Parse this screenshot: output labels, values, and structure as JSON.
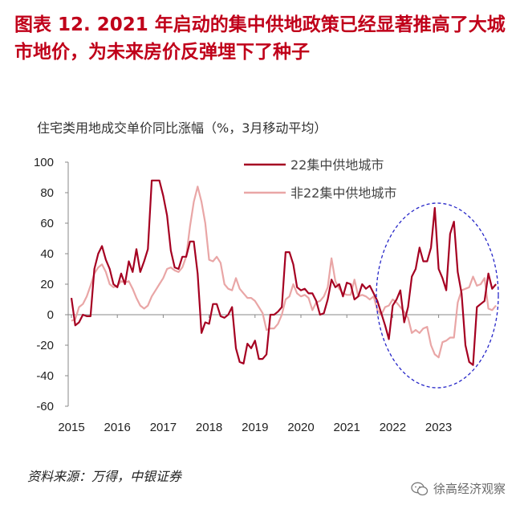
{
  "header": {
    "title": "图表 12.   2021 年启动的集中供地政策已经显著推高了大城市地价，为未来房价反弹埋下了种子"
  },
  "chart_data": {
    "type": "line",
    "subtitle": "住宅类用地成交单价同比涨幅（%，3月移动平均）",
    "xlabel": "",
    "ylabel": "",
    "ylim": [
      -60,
      100
    ],
    "yticks": [
      100,
      80,
      60,
      40,
      20,
      0,
      -20,
      -40,
      -60
    ],
    "xtick_labels": [
      "2015",
      "2016",
      "2017",
      "2018",
      "2019",
      "2020",
      "2021",
      "2022",
      "2023"
    ],
    "x_start": "2015-01",
    "x_end": "2023-08",
    "x_unit": "month",
    "grid": false,
    "legend_position": "top-right",
    "annotation": "dashed blue ellipse highlighting 2021H2–2023",
    "series": [
      {
        "name": "22集中供地城市",
        "color": "#a50021",
        "values": [
          11,
          -7,
          -5,
          0,
          -1,
          -1,
          30,
          40,
          45,
          36,
          30,
          20,
          18,
          27,
          20,
          35,
          28,
          43,
          28,
          35,
          43,
          88,
          88,
          88,
          78,
          65,
          42,
          31,
          30,
          38,
          38,
          48,
          48,
          27,
          -12,
          -5,
          -6,
          7,
          7,
          -1,
          -2,
          0,
          5,
          -22,
          -31,
          -32,
          -19,
          -22,
          -17,
          -29,
          -29,
          -26,
          0,
          0,
          2,
          5,
          41,
          41,
          33,
          18,
          16,
          17,
          14,
          14,
          9,
          0,
          1,
          10,
          23,
          18,
          20,
          12,
          21,
          20,
          10,
          12,
          20,
          17,
          19,
          14,
          9,
          1,
          -7,
          -16,
          6,
          10,
          16,
          -5,
          5,
          25,
          30,
          44,
          35,
          35,
          44,
          70,
          30,
          24,
          16,
          53,
          61,
          28,
          14,
          -20,
          -31,
          -33,
          5,
          7,
          9,
          27,
          17,
          20
        ]
      },
      {
        "name": "非22集中供地城市",
        "color": "#e9a6a6",
        "values": [
          -4,
          -3,
          5,
          7,
          12,
          19,
          27,
          31,
          33,
          28,
          20,
          18,
          19,
          22,
          21,
          22,
          17,
          11,
          6,
          4,
          6,
          12,
          16,
          20,
          24,
          30,
          31,
          29,
          28,
          31,
          38,
          58,
          74,
          84,
          74,
          60,
          36,
          35,
          38,
          34,
          20,
          17,
          16,
          24,
          17,
          14,
          11,
          11,
          9,
          5,
          1,
          -10,
          -9,
          -9,
          -6,
          0,
          10,
          12,
          20,
          14,
          12,
          13,
          11,
          3,
          8,
          9,
          12,
          18,
          37,
          22,
          17,
          14,
          13,
          13,
          23,
          12,
          13,
          12,
          10,
          12,
          3,
          0,
          5,
          6,
          10,
          8,
          5,
          2,
          -2,
          -12,
          -10,
          -12,
          -9,
          -8,
          -20,
          -26,
          -28,
          -18,
          -17,
          -15,
          -15,
          8,
          16,
          17,
          18,
          25,
          19,
          20,
          24,
          4,
          3,
          6
        ]
      }
    ]
  },
  "footer": {
    "source": "资料来源：万得，中银证券",
    "watermark": "徐高经济观察"
  },
  "colors": {
    "title": "#c0001a",
    "highlight_ellipse": "#2525c8"
  },
  "icons": {
    "watermark_icon": "wechat-icon"
  }
}
